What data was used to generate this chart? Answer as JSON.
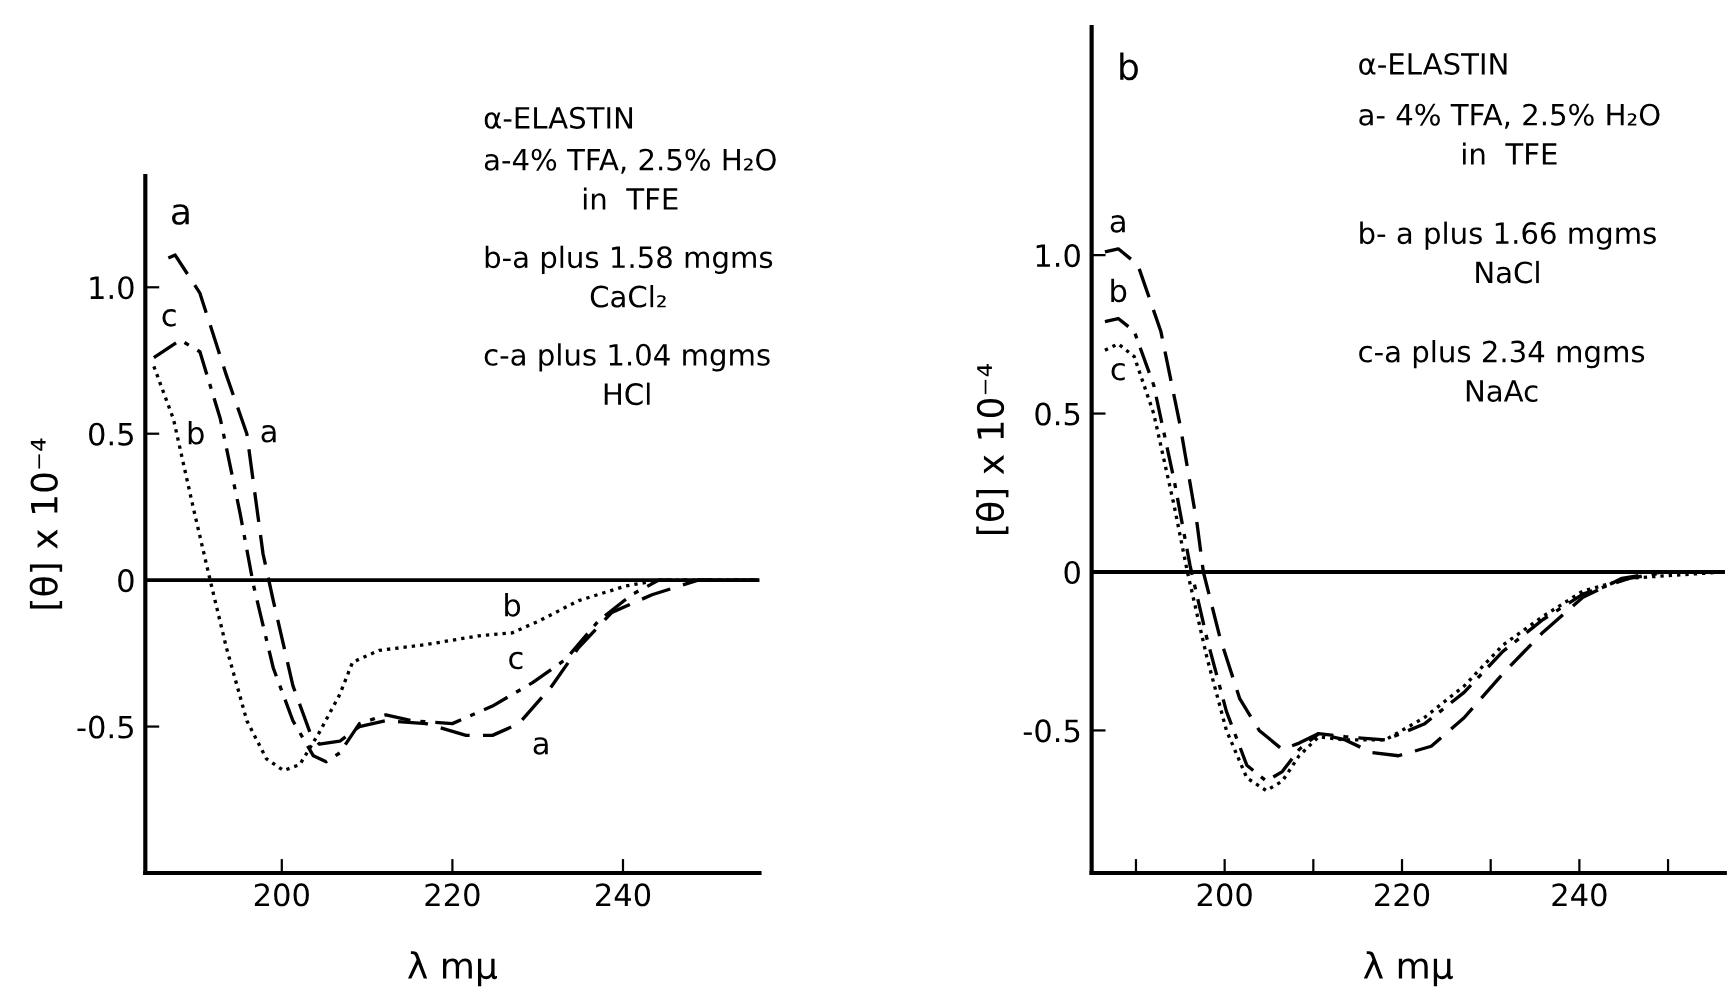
{
  "chart_data": [
    {
      "type": "line",
      "title": "a",
      "xlabel": "λ mμ",
      "ylabel": "[θ] x 10⁻⁴",
      "xlim": [
        184,
        256
      ],
      "ylim": [
        -1.0,
        1.38
      ],
      "xticks": [
        200,
        220,
        240
      ],
      "yticks": [
        {
          "value": 1.0,
          "label": "1.0"
        },
        0.5,
        0,
        -0.5
      ],
      "ref_lines": [
        {
          "axis": "y",
          "value": 0,
          "color": "#000000"
        }
      ],
      "series": [
        {
          "name": "a",
          "color": "#000000",
          "line_style": "dashed",
          "x": [
            186.7,
            187.5,
            190.4,
            193.5,
            195.9,
            197.8,
            199,
            201.3,
            203.3,
            204.4,
            206.8,
            209.1,
            212.2,
            216.9,
            221.6,
            224.7,
            227.8,
            231.7,
            234.8,
            238.7,
            243.4,
            248.8,
            255.8
          ],
          "values": [
            1.1,
            1.11,
            0.98,
            0.7,
            0.5,
            0.09,
            -0.07,
            -0.36,
            -0.52,
            -0.56,
            -0.55,
            -0.5,
            -0.48,
            -0.49,
            -0.53,
            -0.53,
            -0.49,
            -0.36,
            -0.23,
            -0.11,
            -0.05,
            0,
            0
          ]
        },
        {
          "name": "b",
          "color": "#000000",
          "line_style": "dotted",
          "x": [
            185,
            187.3,
            189.6,
            191.6,
            193.5,
            195.9,
            198.2,
            200.2,
            202.1,
            204.4,
            206.8,
            208.3,
            211.4,
            216.9,
            223.1,
            227,
            230.1,
            234.8,
            240.3,
            244.2,
            255.8
          ],
          "values": [
            0.73,
            0.55,
            0.25,
            0,
            -0.23,
            -0.48,
            -0.61,
            -0.65,
            -0.63,
            -0.52,
            -0.39,
            -0.28,
            -0.24,
            -0.22,
            -0.19,
            -0.18,
            -0.14,
            -0.07,
            -0.02,
            0,
            0
          ]
        },
        {
          "name": "c",
          "color": "#000000",
          "line_style": "dashdot",
          "x": [
            185,
            188.1,
            190.4,
            192.8,
            195.1,
            196.7,
            199,
            201.3,
            203.7,
            205.2,
            206.8,
            209.1,
            212.2,
            215.3,
            220,
            224.7,
            229.4,
            233.3,
            237.1,
            241,
            244.2,
            255.8
          ],
          "values": [
            0.76,
            0.82,
            0.78,
            0.55,
            0.23,
            -0.02,
            -0.3,
            -0.48,
            -0.6,
            -0.62,
            -0.59,
            -0.49,
            -0.46,
            -0.48,
            -0.49,
            -0.43,
            -0.35,
            -0.27,
            -0.14,
            -0.05,
            0,
            0
          ]
        }
      ],
      "annotations": [
        "α-ELASTIN",
        "a-4% TFA, 2.5% H₂O\nin  TFE",
        "b-a plus 1.58 mgms\nCaCl₂",
        "c-a plus 1.04 mgms\nHCl"
      ]
    },
    {
      "type": "line",
      "title": "b",
      "xlabel": "λ mμ",
      "ylabel": "[θ] x 10⁻⁴",
      "xlim": [
        185,
        256.4
      ],
      "ylim": [
        -0.95,
        1.72
      ],
      "xticks": [
        {
          "value": 190,
          "label": null
        },
        200,
        {
          "value": 210,
          "label": null
        },
        220,
        {
          "value": 230,
          "label": null
        },
        240,
        {
          "value": 250,
          "label": null
        }
      ],
      "yticks": [
        {
          "value": 1.0,
          "label": "1.0"
        },
        0.5,
        0,
        -0.5
      ],
      "ref_lines": [
        {
          "axis": "y",
          "value": 0,
          "color": "#000000"
        }
      ],
      "series": [
        {
          "name": "a",
          "color": "#000000",
          "line_style": "dashed",
          "x": [
            186.5,
            188,
            190.2,
            192.8,
            195,
            196.9,
            197.6,
            199.5,
            201.7,
            203.9,
            206.5,
            208.4,
            210.6,
            213.6,
            216.6,
            219.6,
            223.3,
            227,
            231.4,
            235.9,
            240.4,
            244.8,
            249.3,
            256.4
          ],
          "values": [
            1.01,
            1.02,
            0.97,
            0.76,
            0.46,
            0.15,
            0,
            -0.21,
            -0.4,
            -0.5,
            -0.56,
            -0.54,
            -0.51,
            -0.53,
            -0.57,
            -0.58,
            -0.55,
            -0.46,
            -0.32,
            -0.19,
            -0.08,
            -0.02,
            0,
            0
          ]
        },
        {
          "name": "b",
          "color": "#000000",
          "line_style": "dashdot",
          "x": [
            186.5,
            188,
            189.8,
            192,
            194.3,
            196.1,
            198,
            200.2,
            202.5,
            204.7,
            206.5,
            208.4,
            210.6,
            213.6,
            218.1,
            222.5,
            227,
            231.4,
            235.9,
            240.4,
            245.6,
            250,
            256.4
          ],
          "values": [
            0.79,
            0.8,
            0.76,
            0.59,
            0.29,
            0.02,
            -0.21,
            -0.44,
            -0.61,
            -0.66,
            -0.63,
            -0.56,
            -0.51,
            -0.52,
            -0.53,
            -0.48,
            -0.38,
            -0.25,
            -0.15,
            -0.07,
            -0.02,
            0,
            0
          ]
        },
        {
          "name": "c",
          "color": "#000000",
          "line_style": "dotted",
          "x": [
            186.5,
            188,
            189.8,
            192,
            194.3,
            195.8,
            198,
            200.2,
            202.5,
            204.7,
            206.5,
            208.4,
            210.6,
            213.6,
            218.1,
            222.5,
            227,
            231.4,
            235.9,
            240.4,
            245.6,
            250.7,
            256.4
          ],
          "values": [
            0.7,
            0.72,
            0.68,
            0.5,
            0.21,
            0,
            -0.27,
            -0.5,
            -0.65,
            -0.69,
            -0.66,
            -0.58,
            -0.52,
            -0.53,
            -0.53,
            -0.46,
            -0.36,
            -0.23,
            -0.14,
            -0.06,
            -0.02,
            -0.01,
            0
          ]
        }
      ],
      "annotations": [
        "α-ELASTIN",
        "a- 4% TFA, 2.5% H₂O\nin  TFE",
        "b- a plus 1.66 mgms\nNaCl",
        "c-a plus 2.34 mgms\nNaAc"
      ]
    }
  ]
}
